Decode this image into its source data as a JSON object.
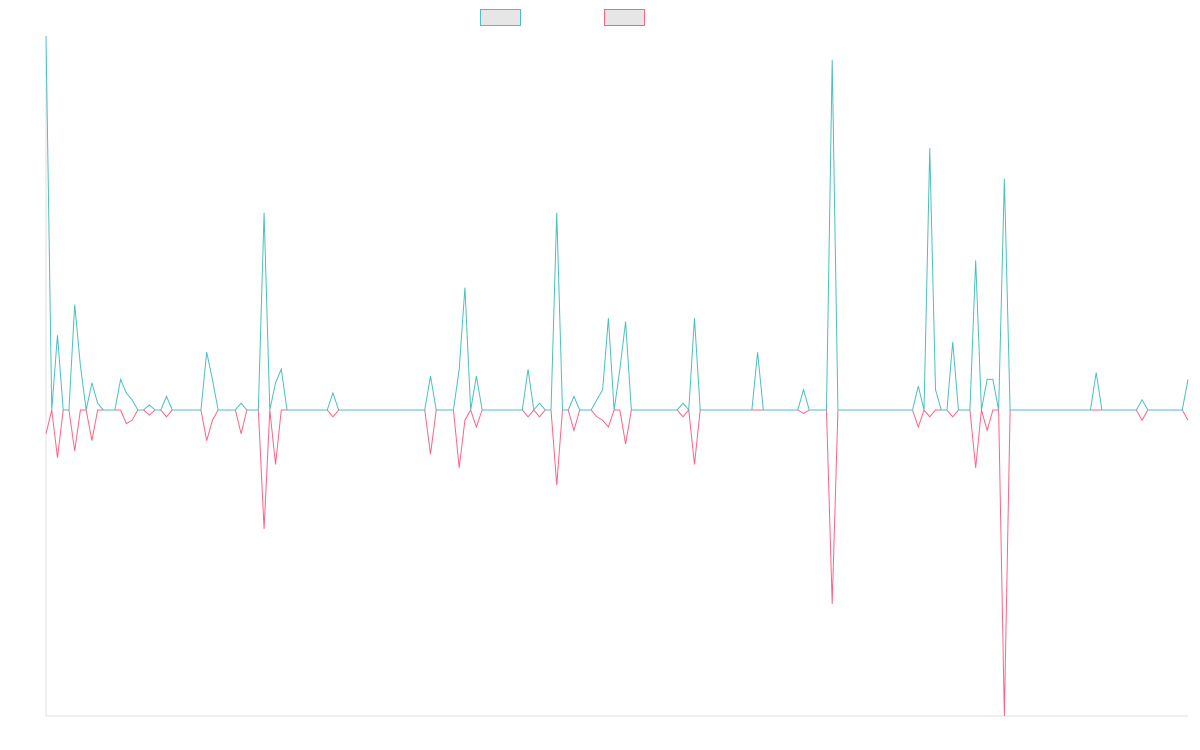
{
  "chart_data": {
    "type": "line",
    "ylim": [
      -0.9,
      1.1
    ],
    "series": [
      {
        "color": "#4bc0c0",
        "values": [
          1.1,
          0,
          0.22,
          0,
          0,
          0.31,
          0.13,
          0,
          0.08,
          0.02,
          0,
          0,
          0,
          0.09,
          0.05,
          0.03,
          0,
          0,
          0.015,
          0,
          0,
          0.04,
          0,
          0,
          0,
          0,
          0,
          0,
          0.17,
          0.09,
          0,
          0,
          0,
          0,
          0.02,
          0,
          0,
          0,
          0.58,
          0,
          0.08,
          0.12,
          0,
          0,
          0,
          0,
          0,
          0,
          0,
          0,
          0.05,
          0,
          0,
          0,
          0,
          0,
          0,
          0,
          0,
          0,
          0,
          0,
          0,
          0,
          0,
          0,
          0,
          0.1,
          0,
          0,
          0,
          0,
          0.12,
          0.36,
          0,
          0.1,
          0,
          0,
          0,
          0,
          0,
          0,
          0,
          0,
          0.12,
          0,
          0.02,
          0,
          0,
          0.58,
          0,
          0,
          0.04,
          0,
          0,
          0,
          0.03,
          0.06,
          0.27,
          0,
          0.12,
          0.26,
          0,
          0,
          0,
          0,
          0,
          0,
          0,
          0,
          0,
          0.02,
          0,
          0.27,
          0,
          0,
          0,
          0,
          0,
          0,
          0,
          0,
          0,
          0,
          0.17,
          0,
          0,
          0,
          0,
          0,
          0,
          0,
          0.06,
          0,
          0,
          0,
          0,
          1.03,
          0,
          0,
          0,
          0,
          0,
          0,
          0,
          0,
          0,
          0,
          0,
          0,
          0,
          0,
          0.07,
          0,
          0.77,
          0.06,
          0,
          0,
          0.2,
          0,
          0,
          0,
          0.44,
          0,
          0.09,
          0.09,
          0,
          0.68,
          0,
          0,
          0,
          0,
          0,
          0,
          0,
          0,
          0,
          0,
          0,
          0,
          0,
          0,
          0,
          0.11,
          0,
          0,
          0,
          0,
          0,
          0,
          0,
          0.03,
          0,
          0,
          0,
          0,
          0,
          0,
          0,
          0.09
        ]
      },
      {
        "color": "#ff6384",
        "values": [
          -0.07,
          0,
          -0.14,
          0,
          0,
          -0.12,
          0,
          0,
          -0.09,
          0,
          0,
          0,
          0,
          0,
          -0.04,
          -0.03,
          0,
          0,
          -0.015,
          0,
          0,
          -0.02,
          0,
          0,
          0,
          0,
          0,
          0,
          -0.09,
          -0.03,
          0,
          0,
          0,
          0,
          -0.07,
          0,
          0,
          0,
          -0.35,
          0,
          -0.16,
          0,
          0,
          0,
          0,
          0,
          0,
          0,
          0,
          0,
          -0.02,
          0,
          0,
          0,
          0,
          0,
          0,
          0,
          0,
          0,
          0,
          0,
          0,
          0,
          0,
          0,
          0,
          -0.13,
          0,
          0,
          0,
          0,
          -0.17,
          -0.03,
          0,
          -0.05,
          0,
          0,
          0,
          0,
          0,
          0,
          0,
          0,
          -0.02,
          0,
          -0.02,
          0,
          0,
          -0.22,
          0,
          0,
          -0.06,
          0,
          0,
          0,
          -0.02,
          -0.03,
          -0.05,
          0,
          0,
          -0.1,
          0,
          0,
          0,
          0,
          0,
          0,
          0,
          0,
          0,
          -0.02,
          0,
          -0.16,
          0,
          0,
          0,
          0,
          0,
          0,
          0,
          0,
          0,
          0,
          0,
          0,
          0,
          0,
          0,
          0,
          0,
          0,
          -0.01,
          0,
          0,
          0,
          0,
          -0.57,
          0,
          0,
          0,
          0,
          0,
          0,
          0,
          0,
          0,
          0,
          0,
          0,
          0,
          0,
          -0.05,
          0,
          -0.02,
          0,
          0,
          0,
          -0.02,
          0,
          0,
          0,
          -0.17,
          0,
          -0.06,
          0,
          0,
          -0.9,
          0,
          0,
          0,
          0,
          0,
          0,
          0,
          0,
          0,
          0,
          0,
          0,
          0,
          0,
          0,
          0,
          0,
          0,
          0,
          0,
          0,
          0,
          0,
          -0.03,
          0,
          0,
          0,
          0,
          0,
          0,
          0,
          -0.03
        ]
      }
    ]
  }
}
